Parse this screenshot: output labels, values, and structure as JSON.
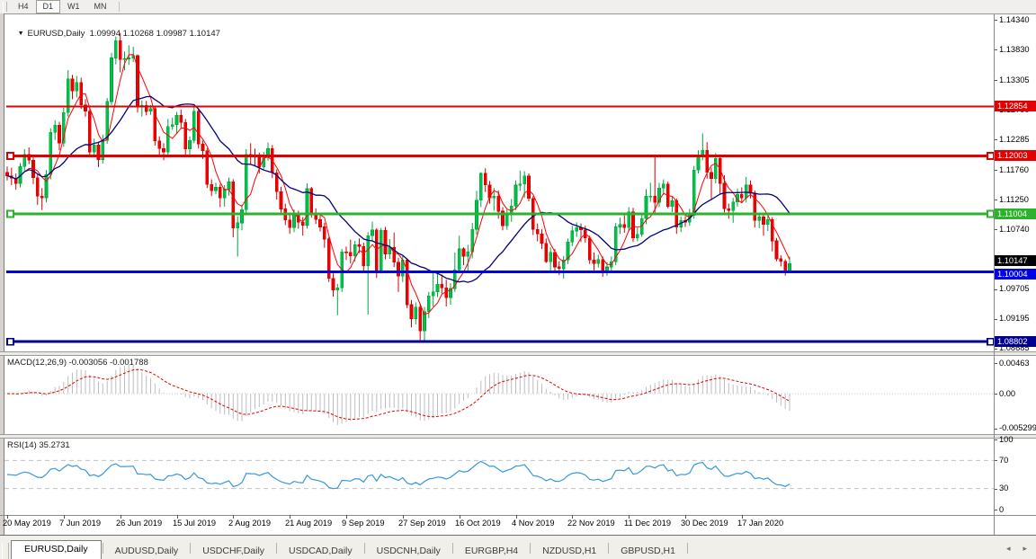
{
  "toolbar": {
    "periods": [
      {
        "label": "H4",
        "active": false
      },
      {
        "label": "D1",
        "active": true
      },
      {
        "label": "W1",
        "active": false
      },
      {
        "label": "MN",
        "active": false
      }
    ]
  },
  "chart": {
    "title_text": "EURUSD,Daily  1.09994 1.10268 1.09987 1.10147",
    "dropdown_icon": "▼"
  },
  "indicators": {
    "macd_label": "MACD(12,26,9) -0.003056 -0.001788",
    "rsi_label": "RSI(14) 35.2731"
  },
  "chart_data": {
    "type": "candlestick",
    "symbol": "EURUSD",
    "period": "Daily",
    "title_ohlc": {
      "open": 1.09994,
      "high": 1.10268,
      "low": 1.09987,
      "close": 1.10147
    },
    "x_labels": [
      "20 May 2019",
      "7 Jun 2019",
      "26 Jun 2019",
      "15 Jul 2019",
      "2 Aug 2019",
      "21 Aug 2019",
      "9 Sep 2019",
      "27 Sep 2019",
      "16 Oct 2019",
      "4 Nov 2019",
      "22 Nov 2019",
      "11 Dec 2019",
      "30 Dec 2019",
      "17 Jan 2020"
    ],
    "bars_per_label": 13,
    "y_ticks": [
      "1.14340",
      "1.13830",
      "1.13305",
      "1.12790",
      "1.12285",
      "1.11760",
      "1.11250",
      "1.10740",
      "1.10220",
      "1.09705",
      "1.09195",
      "1.08685"
    ],
    "hlines": [
      {
        "price": 1.12854,
        "label": "1.12854",
        "color": "#e00000",
        "width": 2,
        "selected": false
      },
      {
        "price": 1.12003,
        "label": "1.12003",
        "color": "#e00000",
        "width": 3,
        "selected": true
      },
      {
        "price": 1.11004,
        "label": "1.11004",
        "color": "#2db22d",
        "width": 3,
        "selected": true
      },
      {
        "price": 1.10004,
        "label": "1.10004",
        "color": "#0000e8",
        "width": 3,
        "selected": false
      },
      {
        "price": 1.08802,
        "label": "1.08802",
        "color": "#000090",
        "width": 3,
        "selected": true
      }
    ],
    "current_price": {
      "value": 1.10147,
      "label": "1.10147",
      "badge_color": "#000000"
    },
    "overlays": {
      "sma_fast_period": 5,
      "sma_slow_period": 20
    },
    "macd": {
      "params": [
        12,
        26,
        9
      ],
      "value": -0.003056,
      "signal": -0.001788,
      "axis_labels": [
        {
          "text": "0.00463",
          "value": 0.00463
        },
        {
          "text": "0.00",
          "value": 0
        },
        {
          "text": "-0.005299",
          "value": -0.005299
        }
      ]
    },
    "rsi": {
      "period": 14,
      "value": 35.2731,
      "levels": [
        70,
        30
      ],
      "axis_labels": [
        {
          "text": "100",
          "value": 100
        },
        {
          "text": "70",
          "value": 70
        },
        {
          "text": "30",
          "value": 30
        },
        {
          "text": "0",
          "value": 0
        }
      ]
    },
    "colors": {
      "bull": "#00c44a",
      "bull_line": "#00a53c",
      "bear": "#f20000",
      "bear_line": "#d40000",
      "ma_fast": "#ff0000",
      "ma_slow": "#000080",
      "macd_hist": "#bdbdbd",
      "macd_signal": "#e00000",
      "rsi_line": "#3598db",
      "level_dash": "#c0c0c0"
    },
    "candles": [
      [
        1.1172,
        1.1182,
        1.1158,
        1.1166
      ],
      [
        1.1166,
        1.118,
        1.115,
        1.1162
      ],
      [
        1.1162,
        1.117,
        1.1142,
        1.1153
      ],
      [
        1.1153,
        1.1188,
        1.1146,
        1.1182
      ],
      [
        1.1182,
        1.1212,
        1.1175,
        1.1203
      ],
      [
        1.1203,
        1.1215,
        1.1186,
        1.1193
      ],
      [
        1.1193,
        1.12,
        1.1152,
        1.1163
      ],
      [
        1.1163,
        1.117,
        1.1116,
        1.1131
      ],
      [
        1.1131,
        1.1145,
        1.1107,
        1.1128
      ],
      [
        1.1128,
        1.1176,
        1.112,
        1.1168
      ],
      [
        1.1168,
        1.1248,
        1.116,
        1.1241
      ],
      [
        1.1241,
        1.1262,
        1.1228,
        1.1253
      ],
      [
        1.1253,
        1.1259,
        1.121,
        1.1222
      ],
      [
        1.1222,
        1.1283,
        1.1216,
        1.1275
      ],
      [
        1.1275,
        1.1348,
        1.1268,
        1.1333
      ],
      [
        1.1333,
        1.134,
        1.1298,
        1.1312
      ],
      [
        1.1312,
        1.1338,
        1.1301,
        1.1327
      ],
      [
        1.1327,
        1.1335,
        1.1281,
        1.1288
      ],
      [
        1.1288,
        1.1298,
        1.1268,
        1.1277
      ],
      [
        1.1277,
        1.1283,
        1.12,
        1.1207
      ],
      [
        1.1207,
        1.123,
        1.1199,
        1.1219
      ],
      [
        1.1219,
        1.1225,
        1.1181,
        1.1194
      ],
      [
        1.1194,
        1.1237,
        1.1187,
        1.1227
      ],
      [
        1.1227,
        1.13,
        1.1221,
        1.1294
      ],
      [
        1.1294,
        1.1378,
        1.1288,
        1.1369
      ],
      [
        1.1369,
        1.1406,
        1.1358,
        1.1399
      ],
      [
        1.1399,
        1.1412,
        1.1344,
        1.1366
      ],
      [
        1.1366,
        1.138,
        1.1348,
        1.1368
      ],
      [
        1.1368,
        1.1391,
        1.1357,
        1.1369
      ],
      [
        1.1369,
        1.1388,
        1.1362,
        1.1373
      ],
      [
        1.1373,
        1.1375,
        1.1275,
        1.1285
      ],
      [
        1.1285,
        1.1296,
        1.1268,
        1.1287
      ],
      [
        1.1287,
        1.1295,
        1.127,
        1.1277
      ],
      [
        1.1277,
        1.1288,
        1.1271,
        1.1282
      ],
      [
        1.1282,
        1.1286,
        1.1218,
        1.1226
      ],
      [
        1.1226,
        1.1234,
        1.1202,
        1.1213
      ],
      [
        1.1213,
        1.1222,
        1.1193,
        1.1207
      ],
      [
        1.1207,
        1.1264,
        1.1201,
        1.1251
      ],
      [
        1.1251,
        1.1266,
        1.1245,
        1.1254
      ],
      [
        1.1254,
        1.1276,
        1.1239,
        1.127
      ],
      [
        1.127,
        1.128,
        1.1248,
        1.1258
      ],
      [
        1.1258,
        1.1264,
        1.1202,
        1.1212
      ],
      [
        1.1212,
        1.1234,
        1.1198,
        1.1227
      ],
      [
        1.1227,
        1.1285,
        1.1222,
        1.1277
      ],
      [
        1.1277,
        1.1282,
        1.1213,
        1.1221
      ],
      [
        1.1221,
        1.1227,
        1.1195,
        1.1209
      ],
      [
        1.1209,
        1.1214,
        1.1145,
        1.1151
      ],
      [
        1.1151,
        1.116,
        1.1131,
        1.114
      ],
      [
        1.114,
        1.1154,
        1.1134,
        1.1146
      ],
      [
        1.1146,
        1.1152,
        1.1112,
        1.1128
      ],
      [
        1.1128,
        1.115,
        1.1113,
        1.1143
      ],
      [
        1.1143,
        1.1163,
        1.1132,
        1.1156
      ],
      [
        1.1156,
        1.116,
        1.106,
        1.1076
      ],
      [
        1.1076,
        1.1096,
        1.1027,
        1.1085
      ],
      [
        1.1085,
        1.1116,
        1.1072,
        1.1108
      ],
      [
        1.1108,
        1.1212,
        1.1101,
        1.1203
      ],
      [
        1.1203,
        1.1222,
        1.1185,
        1.12
      ],
      [
        1.12,
        1.1213,
        1.1183,
        1.1199
      ],
      [
        1.1199,
        1.1206,
        1.117,
        1.1181
      ],
      [
        1.1181,
        1.1207,
        1.1177,
        1.1199
      ],
      [
        1.1199,
        1.1223,
        1.1192,
        1.1213
      ],
      [
        1.1213,
        1.1219,
        1.1162,
        1.1171
      ],
      [
        1.1171,
        1.1177,
        1.1125,
        1.1139
      ],
      [
        1.1139,
        1.1147,
        1.1099,
        1.1109
      ],
      [
        1.1109,
        1.1118,
        1.1081,
        1.109
      ],
      [
        1.109,
        1.11,
        1.1066,
        1.1077
      ],
      [
        1.1077,
        1.1108,
        1.1069,
        1.1099
      ],
      [
        1.1099,
        1.1106,
        1.1075,
        1.1086
      ],
      [
        1.1086,
        1.1095,
        1.1063,
        1.1081
      ],
      [
        1.1081,
        1.1153,
        1.1075,
        1.1144
      ],
      [
        1.1144,
        1.1147,
        1.1094,
        1.1101
      ],
      [
        1.1101,
        1.111,
        1.1083,
        1.1091
      ],
      [
        1.1091,
        1.1098,
        1.107,
        1.1078
      ],
      [
        1.1078,
        1.1085,
        1.1042,
        1.1057
      ],
      [
        1.1057,
        1.1061,
        1.0983,
        1.0989
      ],
      [
        1.0989,
        1.0998,
        1.0958,
        1.0969
      ],
      [
        1.0969,
        1.098,
        1.0926,
        1.0973
      ],
      [
        1.0973,
        1.104,
        1.0966,
        1.1035
      ],
      [
        1.1035,
        1.1044,
        1.1021,
        1.1034
      ],
      [
        1.1034,
        1.1056,
        1.1015,
        1.1028
      ],
      [
        1.1028,
        1.1054,
        1.1018,
        1.1047
      ],
      [
        1.1047,
        1.1058,
        1.1033,
        1.1044
      ],
      [
        1.1044,
        1.1051,
        1.0999,
        1.1011
      ],
      [
        1.1011,
        1.1069,
        1.0927,
        1.1063
      ],
      [
        1.1063,
        1.1087,
        1.1053,
        1.1073
      ],
      [
        1.1073,
        1.1076,
        1.099,
        1.1003
      ],
      [
        1.1003,
        1.1076,
        1.0998,
        1.1072
      ],
      [
        1.1072,
        1.1078,
        1.1022,
        1.1031
      ],
      [
        1.1031,
        1.1057,
        1.1023,
        1.1043
      ],
      [
        1.1043,
        1.1068,
        1.1009,
        1.1017
      ],
      [
        1.1017,
        1.1025,
        1.0966,
        1.0993
      ],
      [
        1.0993,
        1.1028,
        1.0983,
        1.1021
      ],
      [
        1.1021,
        1.1024,
        1.0938,
        1.0944
      ],
      [
        1.0944,
        1.0952,
        1.0905,
        1.092
      ],
      [
        1.092,
        1.0948,
        1.091,
        1.094
      ],
      [
        1.094,
        1.0946,
        1.0883,
        1.0899
      ],
      [
        1.0899,
        1.094,
        1.0879,
        1.0932
      ],
      [
        1.0932,
        1.0966,
        1.0921,
        1.0959
      ],
      [
        1.0959,
        1.0999,
        1.0941,
        1.0966
      ],
      [
        1.0966,
        1.0999,
        1.0957,
        1.0979
      ],
      [
        1.0979,
        1.0996,
        1.0963,
        1.0973
      ],
      [
        1.0973,
        1.0987,
        1.0941,
        1.0956
      ],
      [
        1.0956,
        1.0981,
        1.0944,
        1.0972
      ],
      [
        1.0972,
        1.1034,
        1.0966,
        1.1004
      ],
      [
        1.1004,
        1.1063,
        1.1,
        1.104
      ],
      [
        1.104,
        1.1043,
        1.1012,
        1.1027
      ],
      [
        1.1027,
        1.1047,
        1.1001,
        1.1035
      ],
      [
        1.1035,
        1.1085,
        1.1024,
        1.1074
      ],
      [
        1.1074,
        1.114,
        1.1065,
        1.1124
      ],
      [
        1.1124,
        1.1172,
        1.1112,
        1.117
      ],
      [
        1.117,
        1.1179,
        1.1138,
        1.115
      ],
      [
        1.115,
        1.1157,
        1.1118,
        1.1128
      ],
      [
        1.1128,
        1.1145,
        1.1106,
        1.1131
      ],
      [
        1.1131,
        1.1141,
        1.1092,
        1.1105
      ],
      [
        1.1105,
        1.1112,
        1.1072,
        1.108
      ],
      [
        1.108,
        1.1108,
        1.1073,
        1.1099
      ],
      [
        1.1099,
        1.1126,
        1.1087,
        1.1114
      ],
      [
        1.1114,
        1.1158,
        1.1107,
        1.115
      ],
      [
        1.115,
        1.1175,
        1.114,
        1.1152
      ],
      [
        1.1152,
        1.1174,
        1.1128,
        1.1166
      ],
      [
        1.1166,
        1.117,
        1.1122,
        1.1127
      ],
      [
        1.1127,
        1.1131,
        1.1064,
        1.1074
      ],
      [
        1.1074,
        1.1084,
        1.1053,
        1.1066
      ],
      [
        1.1066,
        1.1074,
        1.104,
        1.105
      ],
      [
        1.105,
        1.1058,
        1.1016,
        1.1018
      ],
      [
        1.1018,
        1.1043,
        1.1003,
        1.1034
      ],
      [
        1.1034,
        1.104,
        1.1002,
        1.1009
      ],
      [
        1.1009,
        1.1019,
        1.0995,
        1.1006
      ],
      [
        1.1006,
        1.1028,
        1.0989,
        1.1021
      ],
      [
        1.1021,
        1.1058,
        1.1014,
        1.1052
      ],
      [
        1.1052,
        1.108,
        1.1045,
        1.1071
      ],
      [
        1.1071,
        1.1086,
        1.1061,
        1.1077
      ],
      [
        1.1077,
        1.1084,
        1.1052,
        1.1073
      ],
      [
        1.1073,
        1.108,
        1.1051,
        1.1059
      ],
      [
        1.1059,
        1.1063,
        1.1014,
        1.1021
      ],
      [
        1.1021,
        1.1034,
        1.1003,
        1.1015
      ],
      [
        1.1015,
        1.103,
        1.1008,
        1.1022
      ],
      [
        1.1022,
        1.1027,
        1.0992,
        1.1001
      ],
      [
        1.1001,
        1.1017,
        1.0994,
        1.1009
      ],
      [
        1.1009,
        1.1027,
        1.1002,
        1.1018
      ],
      [
        1.1018,
        1.1085,
        1.1012,
        1.1078
      ],
      [
        1.1078,
        1.1094,
        1.1066,
        1.1082
      ],
      [
        1.1082,
        1.1098,
        1.1068,
        1.1077
      ],
      [
        1.1077,
        1.1112,
        1.107,
        1.1104
      ],
      [
        1.1104,
        1.1111,
        1.1052,
        1.1059
      ],
      [
        1.1059,
        1.1076,
        1.1053,
        1.1065
      ],
      [
        1.1065,
        1.1099,
        1.1061,
        1.1092
      ],
      [
        1.1092,
        1.1143,
        1.1083,
        1.1131
      ],
      [
        1.1131,
        1.1154,
        1.1121,
        1.1131
      ],
      [
        1.1131,
        1.12,
        1.1102,
        1.112
      ],
      [
        1.112,
        1.1154,
        1.1112,
        1.1145
      ],
      [
        1.1145,
        1.116,
        1.1133,
        1.1152
      ],
      [
        1.1152,
        1.1156,
        1.111,
        1.1113
      ],
      [
        1.1113,
        1.113,
        1.1104,
        1.1123
      ],
      [
        1.1123,
        1.1127,
        1.1066,
        1.1078
      ],
      [
        1.1078,
        1.1096,
        1.1069,
        1.1089
      ],
      [
        1.1089,
        1.1096,
        1.1078,
        1.1086
      ],
      [
        1.1086,
        1.1109,
        1.108,
        1.1098
      ],
      [
        1.1098,
        1.1183,
        1.1092,
        1.1176
      ],
      [
        1.1176,
        1.121,
        1.117,
        1.1199
      ],
      [
        1.1199,
        1.1239,
        1.1193,
        1.121
      ],
      [
        1.121,
        1.1224,
        1.1161,
        1.1172
      ],
      [
        1.1172,
        1.118,
        1.1125,
        1.1161
      ],
      [
        1.1161,
        1.1205,
        1.1153,
        1.1196
      ],
      [
        1.1196,
        1.1199,
        1.1135,
        1.1153
      ],
      [
        1.1153,
        1.1167,
        1.1103,
        1.1109
      ],
      [
        1.1109,
        1.1118,
        1.1092,
        1.1106
      ],
      [
        1.1106,
        1.1128,
        1.1085,
        1.1121
      ],
      [
        1.1121,
        1.1144,
        1.1113,
        1.1134
      ],
      [
        1.1134,
        1.1146,
        1.1119,
        1.1128
      ],
      [
        1.1128,
        1.1164,
        1.112,
        1.115
      ],
      [
        1.115,
        1.1158,
        1.1127,
        1.1136
      ],
      [
        1.1136,
        1.1141,
        1.1077,
        1.1089
      ],
      [
        1.1089,
        1.1102,
        1.1076,
        1.1095
      ],
      [
        1.1095,
        1.1101,
        1.1063,
        1.1082
      ],
      [
        1.1082,
        1.1097,
        1.1071,
        1.1091
      ],
      [
        1.1091,
        1.1095,
        1.1036,
        1.1054
      ],
      [
        1.1054,
        1.1059,
        1.1019,
        1.1023
      ],
      [
        1.1023,
        1.1029,
        1.101,
        1.1019
      ],
      [
        1.1019,
        1.1022,
        1.0994,
        1.1
      ],
      [
        1.09994,
        1.10268,
        1.09987,
        1.10147
      ]
    ]
  },
  "tabs": {
    "items": [
      {
        "label": "EURUSD,Daily",
        "active": true
      },
      {
        "label": "AUDUSD,Daily",
        "active": false
      },
      {
        "label": "USDCHF,Daily",
        "active": false
      },
      {
        "label": "USDCAD,Daily",
        "active": false
      },
      {
        "label": "USDCNH,Daily",
        "active": false
      },
      {
        "label": "EURGBP,H4",
        "active": false
      },
      {
        "label": "NZDUSD,H1",
        "active": false
      },
      {
        "label": "GBPUSD,H1",
        "active": false
      }
    ],
    "scroll_left_icon": "◂",
    "scroll_right_icon": "▸"
  }
}
